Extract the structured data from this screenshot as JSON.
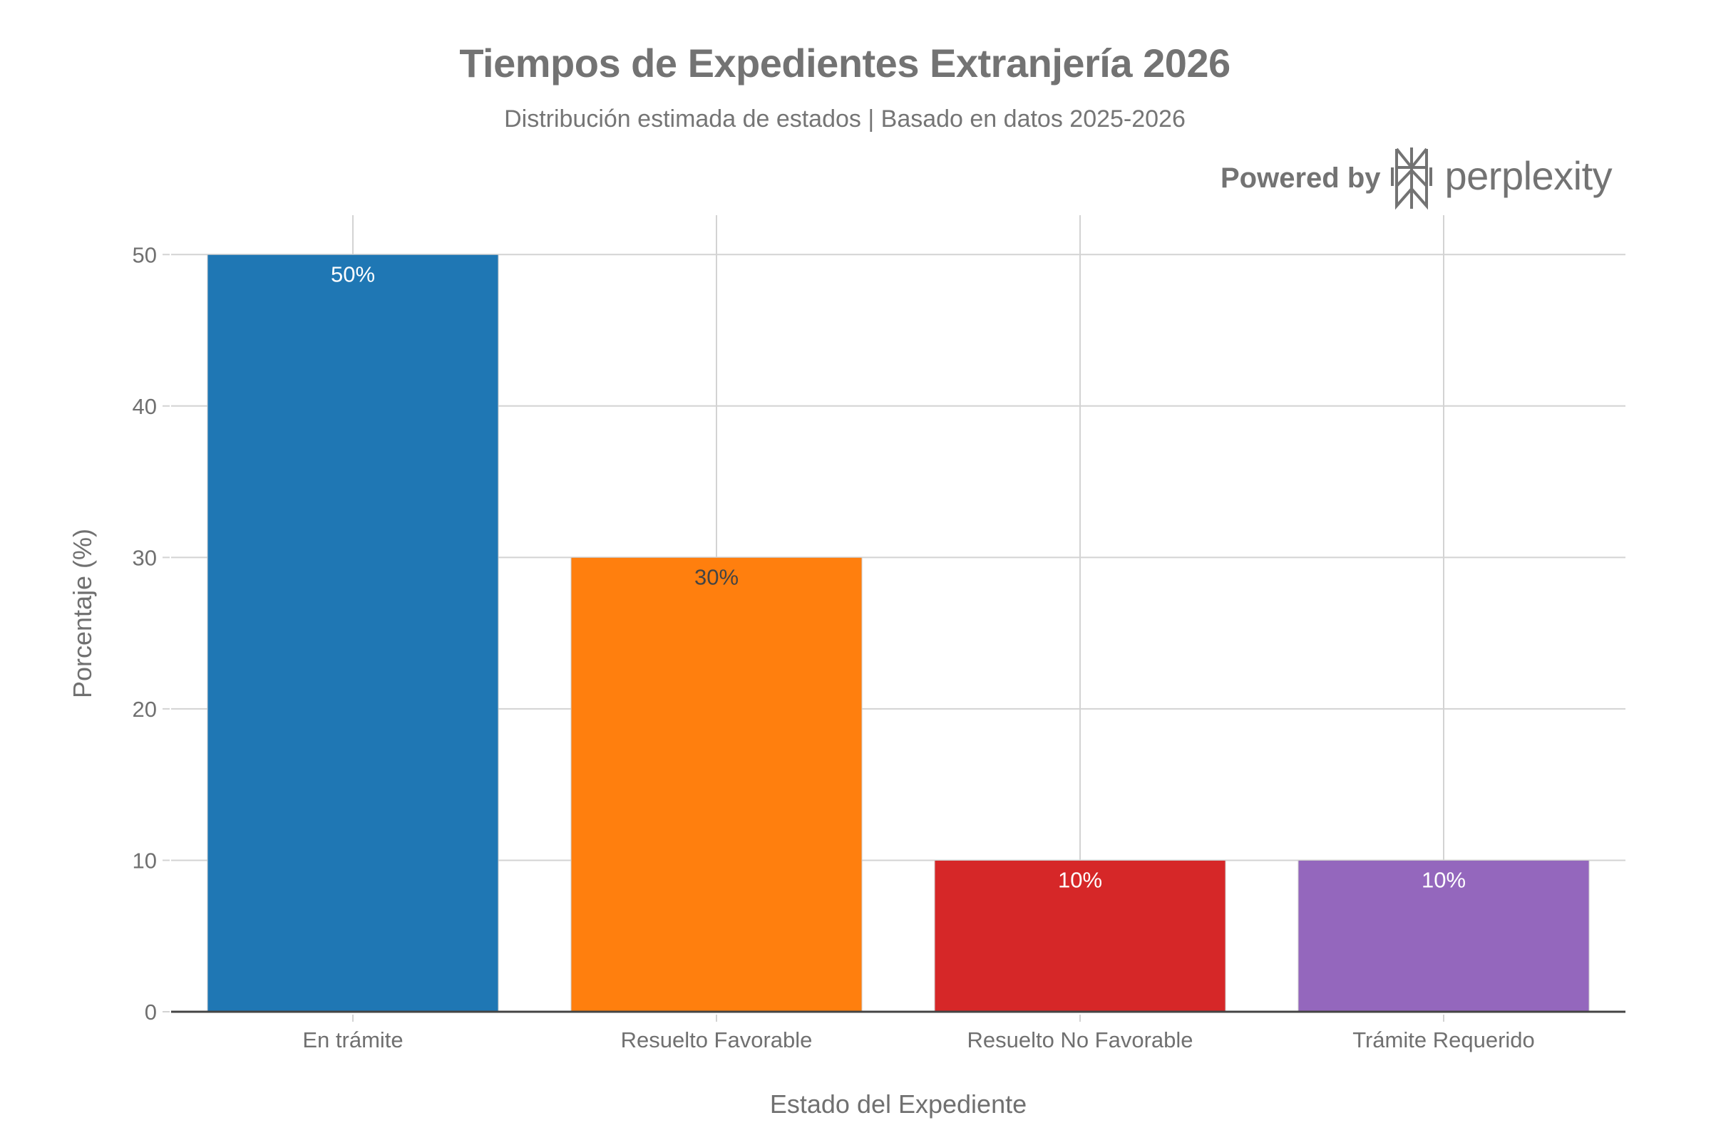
{
  "header": {
    "title": "Tiempos de Expedientes Extranjería 2026",
    "subtitle": "Distribución estimada de estados | Basado en datos 2025-2026"
  },
  "branding": {
    "powered_by": "Powered by",
    "brand_name": "perplexity",
    "logo_icon": "perplexity-logo-icon"
  },
  "chart_data": {
    "type": "bar",
    "title": "Tiempos de Expedientes Extranjería 2026",
    "subtitle": "Distribución estimada de estados | Basado en datos 2025-2026",
    "xlabel": "Estado del Expediente",
    "ylabel": "Porcentaje (%)",
    "categories": [
      "En trámite",
      "Resuelto Favorable",
      "Resuelto No Favorable",
      "Trámite Requerido"
    ],
    "values": [
      50,
      30,
      10,
      10
    ],
    "data_labels": [
      "50%",
      "30%",
      "10%",
      "10%"
    ],
    "colors": [
      "#1F77B4",
      "#FF7F0E",
      "#D62728",
      "#9467BD"
    ],
    "label_colors": [
      "#FFFFFF",
      "#444444",
      "#FFFFFF",
      "#FFFFFF"
    ],
    "ylim": [
      0,
      52.6
    ],
    "yticks": [
      0,
      10,
      20,
      30,
      40,
      50
    ],
    "grid": true,
    "legend": "none"
  }
}
